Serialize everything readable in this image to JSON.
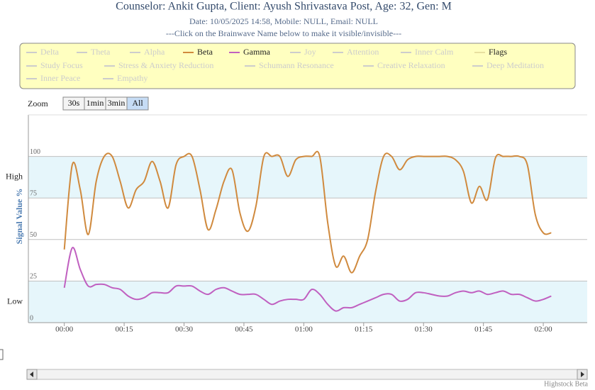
{
  "chart_data": {
    "type": "line",
    "title": "Counselor: Ankit Gupta, Client: Ayush Shrivastava Post, Age: 32, Gen: M",
    "subtitle": "Date: 10/05/2025 14:58, Mobile: NULL, Email: NULL",
    "note": "---Click on the Brainwave Name below to make it visible/invisible---",
    "zoom_label": "Zoom",
    "zoom_buttons": [
      "30s",
      "1min",
      "3min",
      "All"
    ],
    "zoom_selected": 3,
    "y_label": "Signal Value %",
    "plot_bands": [
      {
        "label": "Low",
        "from": 0,
        "to": 25
      },
      {
        "label": "High",
        "from": 75,
        "to": 100
      }
    ],
    "credits": "Highstock Beta",
    "xlim": [
      -9,
      131
    ],
    "ylim": [
      0,
      125
    ],
    "grid": true,
    "yticks": [
      0,
      25,
      50,
      75,
      100
    ],
    "xticks": [
      {
        "value": 0,
        "label": "00:00"
      },
      {
        "value": 15,
        "label": "00:15"
      },
      {
        "value": 30,
        "label": "00:30"
      },
      {
        "value": 45,
        "label": "00:45"
      },
      {
        "value": 60,
        "label": "01:00"
      },
      {
        "value": 75,
        "label": "01:15"
      },
      {
        "value": 90,
        "label": "01:30"
      },
      {
        "value": 105,
        "label": "01:45"
      },
      {
        "value": 120,
        "label": "02:00"
      }
    ],
    "x": [
      0,
      2,
      4,
      6,
      8,
      10,
      12,
      14,
      16,
      18,
      20,
      22,
      24,
      26,
      28,
      30,
      32,
      34,
      36,
      38,
      40,
      42,
      44,
      46,
      48,
      50,
      52,
      54,
      56,
      58,
      60,
      62,
      64,
      66,
      68,
      70,
      72,
      74,
      76,
      78,
      80,
      82,
      84,
      86,
      88,
      90,
      92,
      94,
      96,
      98,
      100,
      102,
      104,
      106,
      108,
      110,
      112,
      114,
      116,
      118,
      120,
      122
    ],
    "series": [
      {
        "name": "Delta",
        "visible": false
      },
      {
        "name": "Theta",
        "visible": false
      },
      {
        "name": "Alpha",
        "visible": false
      },
      {
        "name": "Beta",
        "visible": true,
        "color": "#d08a3e",
        "values": [
          44,
          95,
          80,
          53,
          85,
          100,
          100,
          85,
          69,
          80,
          85,
          97,
          85,
          69,
          95,
          100,
          100,
          80,
          56,
          68,
          85,
          92,
          66,
          55,
          70,
          100,
          100,
          100,
          88,
          98,
          100,
          100,
          100,
          60,
          34,
          40,
          30,
          40,
          50,
          79,
          100,
          100,
          92,
          98,
          100,
          100,
          100,
          100,
          100,
          98,
          91,
          72,
          82,
          74,
          99,
          100,
          100,
          100,
          95,
          65,
          54,
          54
        ]
      },
      {
        "name": "Gamma",
        "visible": true,
        "color": "#c060c0",
        "values": [
          21,
          45,
          32,
          22,
          23,
          23,
          21,
          20,
          16,
          14,
          15,
          18,
          18,
          18,
          22,
          22,
          22,
          19,
          17,
          20,
          21,
          19,
          17,
          17,
          17,
          14,
          11,
          13,
          14,
          14,
          14,
          20,
          17,
          11,
          7,
          9,
          9,
          11,
          13,
          15,
          17,
          17,
          13,
          14,
          18,
          18,
          17,
          16,
          16,
          18,
          19,
          18,
          19,
          17,
          18,
          19,
          17,
          17,
          15,
          13,
          14,
          16
        ]
      },
      {
        "name": "Joy",
        "visible": false
      },
      {
        "name": "Attention",
        "visible": false
      },
      {
        "name": "Inner Calm",
        "visible": false
      },
      {
        "name": "Flags",
        "visible": true,
        "color": "#e8e0a0"
      },
      {
        "name": "Study Focus",
        "visible": false
      },
      {
        "name": "Stress & Anxiety Reduction",
        "visible": false
      },
      {
        "name": "Schumann Resonance",
        "visible": false
      },
      {
        "name": "Creative Relaxation",
        "visible": false
      },
      {
        "name": "Deep Meditation",
        "visible": false
      },
      {
        "name": "Inner Peace",
        "visible": false
      },
      {
        "name": "Empathy",
        "visible": false
      }
    ]
  }
}
